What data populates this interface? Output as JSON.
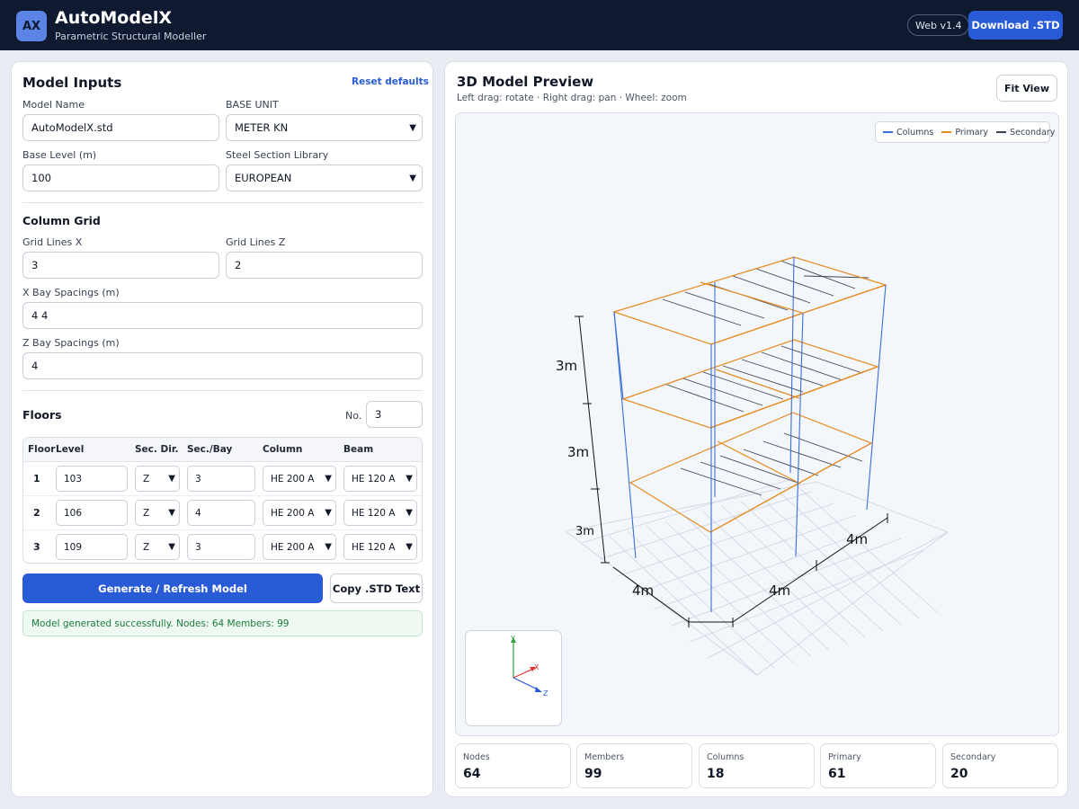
{
  "header": {
    "logo_text": "AX",
    "title": "AutoModelX",
    "subtitle": "Parametric Structural Modeller",
    "version": "Web v1.4",
    "download_label": "Download .STD"
  },
  "inputs": {
    "heading": "Model Inputs",
    "reset_label": "Reset defaults",
    "model_name_label": "Model Name",
    "model_name": "AutoModelX.std",
    "base_unit_label": "BASE UNIT",
    "base_unit": "METER KN",
    "base_level_label": "Base Level (m)",
    "base_level": "100",
    "library_label": "Steel Section Library",
    "library": "EUROPEAN"
  },
  "grid": {
    "heading": "Column Grid",
    "lines_x_label": "Grid Lines X",
    "lines_x": "3",
    "lines_z_label": "Grid Lines Z",
    "lines_z": "2",
    "x_spacing_label": "X Bay Spacings (m)",
    "x_spacing": "4 4",
    "z_spacing_label": "Z Bay Spacings (m)",
    "z_spacing": "4"
  },
  "floors": {
    "heading": "Floors",
    "count_label": "No.",
    "count": "3",
    "columns": [
      "Floor",
      "Level",
      "Sec. Dir.",
      "Sec./Bay",
      "Column",
      "Beam"
    ],
    "rows": [
      {
        "floor": "1",
        "level": "103",
        "dir": "Z",
        "per_bay": "3",
        "column": "HE 200 A",
        "beam": "HE 120 A"
      },
      {
        "floor": "2",
        "level": "106",
        "dir": "Z",
        "per_bay": "4",
        "column": "HE 200 A",
        "beam": "HE 120 A"
      },
      {
        "floor": "3",
        "level": "109",
        "dir": "Z",
        "per_bay": "3",
        "column": "HE 200 A",
        "beam": "HE 120 A"
      }
    ]
  },
  "actions": {
    "generate_label": "Generate / Refresh Model",
    "copy_label": "Copy .STD Text",
    "status": "Model generated successfully. Nodes: 64 Members: 99"
  },
  "preview": {
    "heading": "3D Model Preview",
    "hint": "Left drag: rotate · Right drag: pan · Wheel: zoom",
    "fit_label": "Fit View",
    "legend": [
      {
        "label": "Columns",
        "color": "#3b6fd8"
      },
      {
        "label": "Primary",
        "color": "#e58a1f"
      },
      {
        "label": "Secondary",
        "color": "#374151"
      }
    ],
    "dims": {
      "h1": "3m",
      "h2": "3m",
      "h3": "3m",
      "x1": "4m",
      "x2": "4m",
      "z1": "4m"
    },
    "axes": {
      "y": "Y",
      "x": "X",
      "z": "Z"
    }
  },
  "stats": [
    {
      "label": "Nodes",
      "value": "64"
    },
    {
      "label": "Members",
      "value": "99"
    },
    {
      "label": "Columns",
      "value": "18"
    },
    {
      "label": "Primary",
      "value": "61"
    },
    {
      "label": "Secondary",
      "value": "20"
    }
  ]
}
